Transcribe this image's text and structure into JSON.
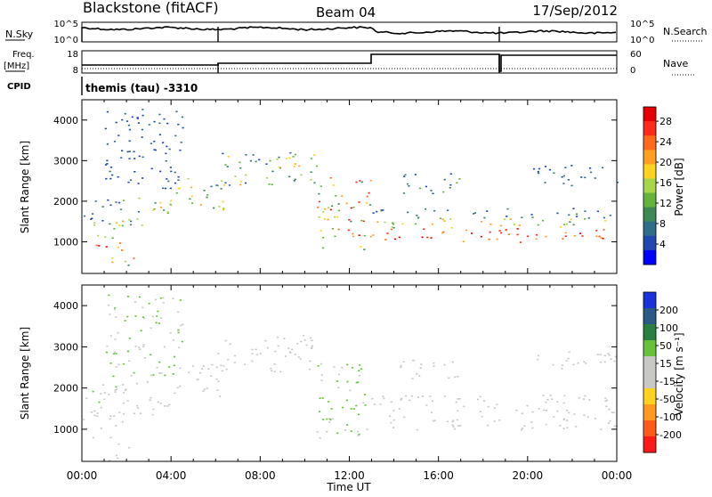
{
  "header": {
    "station": "Blackstone (fitACF)",
    "beam": "Beam 04",
    "date": "17/Sep/2012"
  },
  "top_panels": {
    "nsky_label": "N.Sky",
    "nsky_ticks": [
      "10^5",
      "10^0"
    ],
    "nsearch_label": "N.Search",
    "nsearch_ticks": [
      "10^5",
      "10^0"
    ],
    "freq_label": "Freq.",
    "freq_unit": "[MHz]",
    "freq_ticks": [
      "18",
      "8"
    ],
    "nave_label": "Nave",
    "nave_ticks": [
      "60",
      "0"
    ],
    "cpid_label": "CPID",
    "cpid_value": "themis (tau) -3310"
  },
  "colors": {
    "power": [
      "#0000ff",
      "#1f49b0",
      "#2f6e88",
      "#3d8a55",
      "#64b33b",
      "#a8d64a",
      "#ffd21f",
      "#ffa020",
      "#ff6a1f",
      "#ff2a1a",
      "#e60000"
    ],
    "velocity": [
      "#1a32d9",
      "#2a5a86",
      "#2a8040",
      "#65c23a",
      "#c8c8c4",
      "#c8c8c4",
      "#ffd21f",
      "#ff9a1f",
      "#ff5a1a",
      "#ff1a1a"
    ]
  },
  "chart_data": [
    {
      "type": "heatmap",
      "name": "power",
      "ylabel": "Slant Range [km]",
      "yticks": [
        "1000",
        "2000",
        "3000",
        "4000"
      ],
      "ylim": [
        220,
        4500
      ],
      "xlim": [
        0,
        24
      ],
      "colorbar_label": "Power [dB]",
      "colorbar_ticks": [
        "4",
        "8",
        "12",
        "16",
        "20",
        "24",
        "28"
      ],
      "colorbar_range": [
        0,
        30
      ],
      "scatter_bands": [
        {
          "t0": 0.0,
          "t1": 1.8,
          "r0": 800,
          "r1": 1100,
          "v0": 18,
          "v1": 28
        },
        {
          "t0": 0.0,
          "t1": 1.8,
          "r0": 1100,
          "r1": 1500,
          "v0": 8,
          "v1": 16
        },
        {
          "t0": 0.0,
          "t1": 1.8,
          "r0": 1500,
          "r1": 2100,
          "v0": 3,
          "v1": 9
        },
        {
          "t0": 1.2,
          "t1": 2.3,
          "r0": 250,
          "r1": 700,
          "v0": 10,
          "v1": 28
        },
        {
          "t0": 1.5,
          "t1": 4.0,
          "r0": 1400,
          "r1": 2200,
          "v0": 6,
          "v1": 20
        },
        {
          "t0": 1.0,
          "t1": 4.5,
          "r0": 2300,
          "r1": 4300,
          "v0": 3,
          "v1": 7
        },
        {
          "t0": 4.0,
          "t1": 6.5,
          "r0": 1800,
          "r1": 2600,
          "v0": 4,
          "v1": 20
        },
        {
          "t0": 6.0,
          "t1": 10.8,
          "r0": 2400,
          "r1": 3300,
          "v0": 5,
          "v1": 20
        },
        {
          "t0": 10.5,
          "t1": 13.0,
          "r0": 800,
          "r1": 2600,
          "v0": 8,
          "v1": 28
        },
        {
          "t0": 13.0,
          "t1": 24.0,
          "r0": 1000,
          "r1": 1350,
          "v0": 20,
          "v1": 30
        },
        {
          "t0": 13.0,
          "t1": 24.0,
          "r0": 1350,
          "r1": 1600,
          "v0": 10,
          "v1": 22
        },
        {
          "t0": 13.0,
          "t1": 24.0,
          "r0": 1600,
          "r1": 1850,
          "v0": 3,
          "v1": 10
        },
        {
          "t0": 14.0,
          "t1": 17.0,
          "r0": 2200,
          "r1": 2700,
          "v0": 3,
          "v1": 12
        },
        {
          "t0": 20.0,
          "t1": 24.0,
          "r0": 2400,
          "r1": 2900,
          "v0": 3,
          "v1": 9
        }
      ]
    },
    {
      "type": "heatmap",
      "name": "velocity",
      "ylabel": "Slant Range [km]",
      "yticks": [
        "1000",
        "2000",
        "3000",
        "4000"
      ],
      "ylim": [
        220,
        4500
      ],
      "xlim": [
        0,
        24
      ],
      "xlabel": "Time UT",
      "xticks": [
        "00:00",
        "04:00",
        "08:00",
        "12:00",
        "16:00",
        "20:00",
        "00:00"
      ],
      "colorbar_label": "Velocity [m s⁻¹]",
      "colorbar_ticks": [
        "200",
        "100",
        "50",
        "15",
        "-15",
        "-50",
        "-100",
        "-200"
      ],
      "colorbar_range": [
        -250,
        250
      ],
      "scatter_bands": [
        {
          "t0": 0.0,
          "t1": 1.8,
          "r0": 800,
          "r1": 1500,
          "v0": -15,
          "v1": 15
        },
        {
          "t0": 0.0,
          "t1": 1.8,
          "r0": 1500,
          "r1": 2100,
          "v0": -60,
          "v1": 80
        },
        {
          "t0": 1.2,
          "t1": 2.3,
          "r0": 250,
          "r1": 700,
          "v0": -15,
          "v1": 15
        },
        {
          "t0": 1.5,
          "t1": 4.0,
          "r0": 1300,
          "r1": 2200,
          "v0": -15,
          "v1": 15
        },
        {
          "t0": 1.0,
          "t1": 4.5,
          "r0": 2300,
          "r1": 4300,
          "v0": 15,
          "v1": 90
        },
        {
          "t0": 4.0,
          "t1": 6.5,
          "r0": 1800,
          "r1": 2600,
          "v0": -15,
          "v1": 15
        },
        {
          "t0": 6.0,
          "t1": 10.8,
          "r0": 2400,
          "r1": 3300,
          "v0": -15,
          "v1": 15
        },
        {
          "t0": 10.5,
          "t1": 13.0,
          "r0": 800,
          "r1": 2600,
          "v0": 15,
          "v1": 90
        },
        {
          "t0": 13.0,
          "t1": 24.0,
          "r0": 1000,
          "r1": 1850,
          "v0": -15,
          "v1": 15
        },
        {
          "t0": 14.0,
          "t1": 17.0,
          "r0": 2200,
          "r1": 2700,
          "v0": -15,
          "v1": 15
        },
        {
          "t0": 20.0,
          "t1": 24.0,
          "r0": 2400,
          "r1": 2900,
          "v0": -15,
          "v1": 15
        }
      ]
    }
  ]
}
